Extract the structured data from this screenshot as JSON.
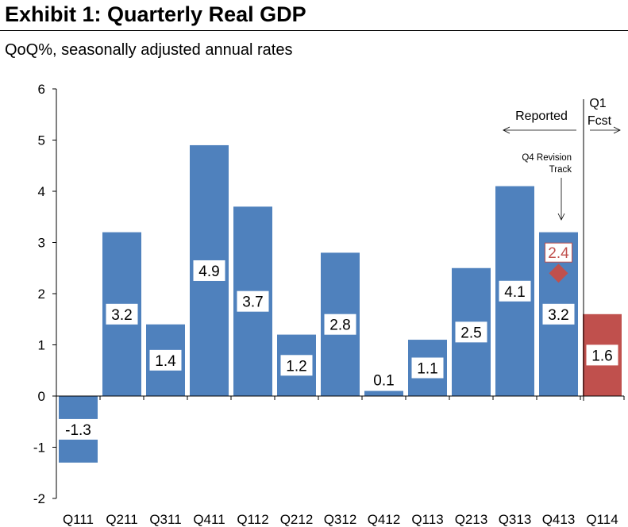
{
  "chart_data": {
    "type": "bar",
    "title": "Exhibit 1: Quarterly Real GDP",
    "subtitle": "QoQ%, seasonally adjusted annual rates",
    "categories": [
      "Q111",
      "Q211",
      "Q311",
      "Q411",
      "Q112",
      "Q212",
      "Q312",
      "Q412",
      "Q113",
      "Q213",
      "Q313",
      "Q413",
      "Q114"
    ],
    "values": [
      -1.3,
      3.2,
      1.4,
      4.9,
      3.7,
      1.2,
      2.8,
      0.1,
      1.1,
      2.5,
      4.1,
      3.2,
      1.6
    ],
    "bar_colors": [
      "#4f81bd",
      "#4f81bd",
      "#4f81bd",
      "#4f81bd",
      "#4f81bd",
      "#4f81bd",
      "#4f81bd",
      "#4f81bd",
      "#4f81bd",
      "#4f81bd",
      "#4f81bd",
      "#4f81bd",
      "#c0504d"
    ],
    "ylim": [
      -2,
      6
    ],
    "yticks": [
      -2,
      -1,
      0,
      1,
      2,
      3,
      4,
      5,
      6
    ],
    "grid": false,
    "revision_marker": {
      "category": "Q413",
      "value": 2.4,
      "label": "2.4",
      "color": "#c0504d"
    },
    "annotations": {
      "reported": "Reported",
      "forecast_line1": "Q1",
      "forecast_line2": "Fcst",
      "revision_line1": "Q4 Revision",
      "revision_line2": "Track"
    }
  }
}
